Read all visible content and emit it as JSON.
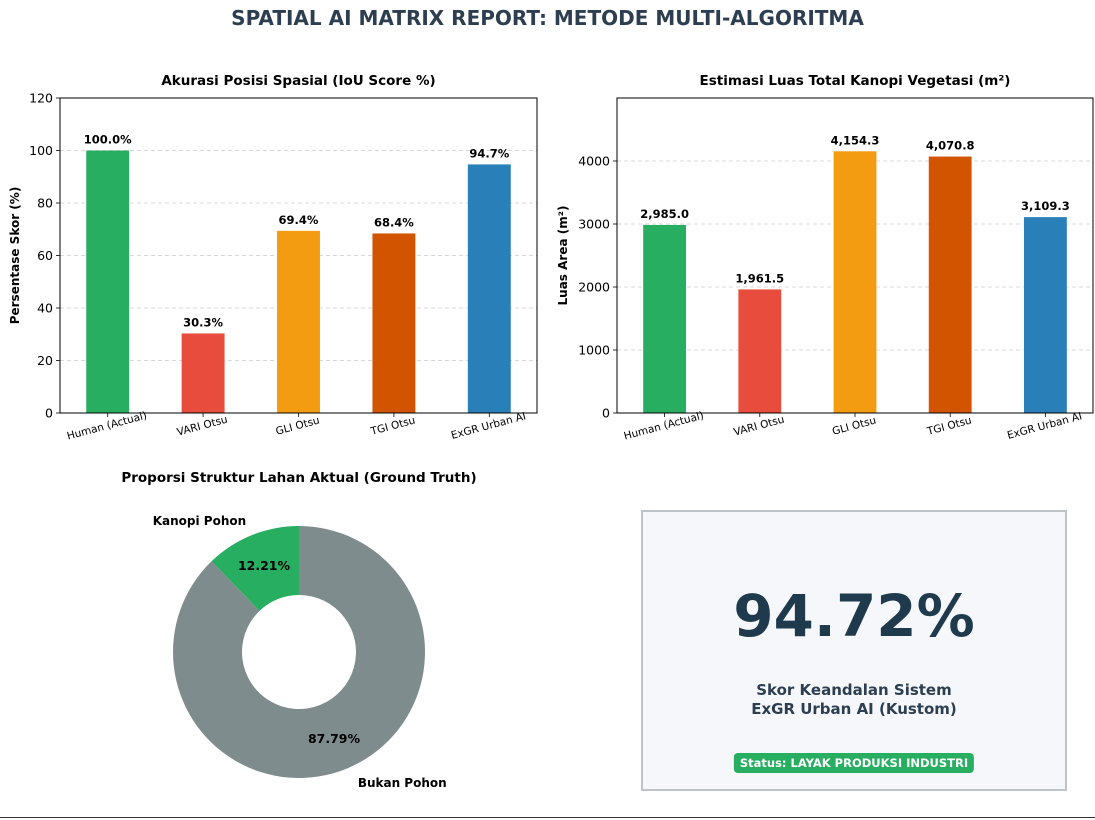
{
  "page_title": "SPATIAL AI MATRIX REPORT: METODE MULTI-ALGORITMA",
  "chart_data": [
    {
      "type": "bar",
      "title": "Akurasi Posisi Spasial (IoU Score %)",
      "xlabel": "",
      "ylabel": "Persentase Skor (%)",
      "categories": [
        "Human (Actual)",
        "VARI Otsu",
        "GLI Otsu",
        "TGI Otsu",
        "ExGR Urban AI"
      ],
      "values": [
        100.0,
        30.3,
        69.4,
        68.4,
        94.7
      ],
      "data_labels": [
        "100.0%",
        "30.3%",
        "69.4%",
        "68.4%",
        "94.7%"
      ],
      "colors": [
        "#27ae60",
        "#e74c3c",
        "#f39c12",
        "#d35400",
        "#2980b9"
      ],
      "ylim": [
        0,
        120
      ],
      "yticks": [
        0,
        20,
        40,
        60,
        80,
        100,
        120
      ],
      "grid": "horizontal-dashed",
      "legend": "none"
    },
    {
      "type": "bar",
      "title": "Estimasi Luas Total Kanopi Vegetasi (m²)",
      "xlabel": "",
      "ylabel": "Luas Area (m²)",
      "categories": [
        "Human (Actual)",
        "VARI Otsu",
        "GLI Otsu",
        "TGI Otsu",
        "ExGR Urban AI"
      ],
      "values": [
        2985.0,
        1961.5,
        4154.3,
        4070.8,
        3109.3
      ],
      "data_labels": [
        "2,985.0",
        "1,961.5",
        "4,154.3",
        "4,070.8",
        "3,109.3"
      ],
      "colors": [
        "#27ae60",
        "#e74c3c",
        "#f39c12",
        "#d35400",
        "#2980b9"
      ],
      "ylim": [
        0,
        5000
      ],
      "yticks": [
        0,
        1000,
        2000,
        3000,
        4000
      ],
      "grid": "horizontal-dashed",
      "legend": "none"
    },
    {
      "type": "pie",
      "variant": "donut",
      "title": "Proporsi Struktur Lahan Aktual (Ground Truth)",
      "slices": [
        {
          "label": "Kanopi Pohon",
          "value": 12.21,
          "pct_label": "12.21%",
          "color": "#27ae60"
        },
        {
          "label": "Bukan Pohon",
          "value": 87.79,
          "pct_label": "87.79%",
          "color": "#7f8c8d"
        }
      ],
      "legend": "none"
    }
  ],
  "kpi": {
    "value": "94.72%",
    "label_line1": "Skor Keandalan Sistem",
    "label_line2": "ExGR Urban AI (Kustom)",
    "status": "Status: LAYAK PRODUKSI INDUSTRI",
    "status_color": "#27ae60"
  }
}
